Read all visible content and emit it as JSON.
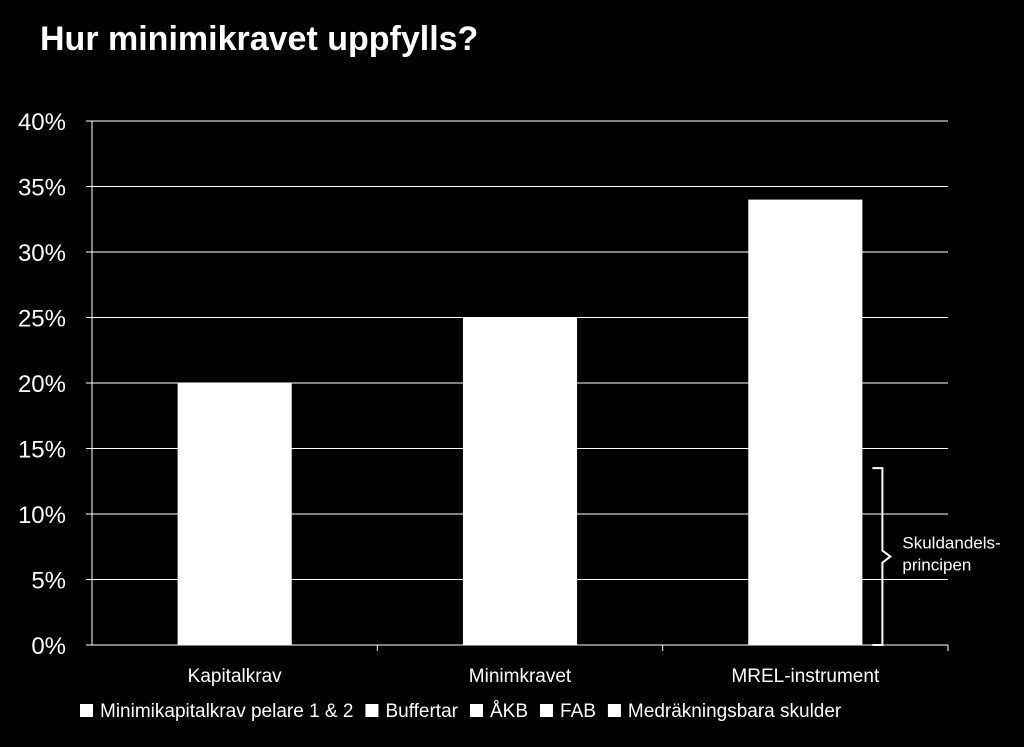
{
  "chart_data": {
    "type": "bar",
    "title": "Hur minimikravet uppfylls?",
    "xlabel": "",
    "ylabel": "",
    "categories": [
      "Kapitalkrav",
      "Minimkravet",
      "MREL-instrument"
    ],
    "values": [
      20,
      25,
      34
    ],
    "ylim": [
      0,
      40
    ],
    "yticks": [
      "0%",
      "5%",
      "10%",
      "15%",
      "20%",
      "25%",
      "30%",
      "35%",
      "40%"
    ],
    "grid": true,
    "legend_position": "bottom",
    "legend": [
      "Minimikapitalkrav pelare 1 & 2",
      "Buffertar",
      "ÅKB",
      "FAB",
      "Medräkningsbara skulder"
    ],
    "annotation": {
      "lines": [
        "Skuldandels-",
        "principen"
      ],
      "from_value": 0,
      "to_value": 13.5
    },
    "colors": {
      "background": "#000000",
      "bar": "#ffffff",
      "grid": "#ffffff",
      "text": "#ffffff"
    }
  }
}
